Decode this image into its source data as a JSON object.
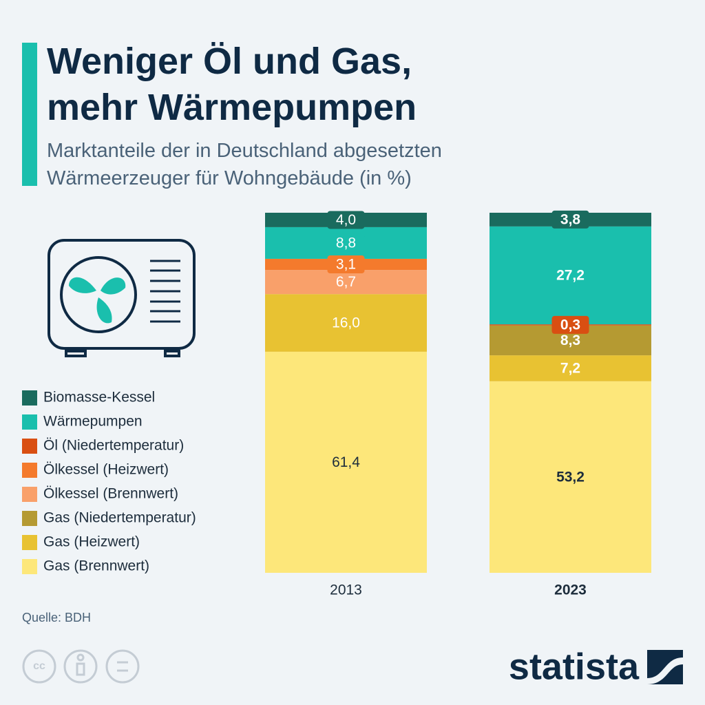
{
  "chart_data": {
    "type": "stacked_bar",
    "title": [
      "Weniger Öl und Gas,",
      "mehr Wärmepumpen"
    ],
    "subtitle": [
      "Marktanteile der in Deutschland abgesetzten",
      "Wärmeerzeuger für Wohngebäude (in %)"
    ],
    "categories": [
      "2013",
      "2023"
    ],
    "ylim": [
      0,
      100
    ],
    "series": [
      {
        "name": "Biomasse-Kessel",
        "color": "#1a6b5e",
        "values": [
          4.0,
          3.8
        ],
        "value_labels": [
          "4,0",
          "3,8"
        ]
      },
      {
        "name": "Wärmepumpen",
        "color": "#1abfad",
        "values": [
          8.8,
          27.2
        ],
        "value_labels": [
          "8,8",
          "27,2"
        ]
      },
      {
        "name": "Öl (Niedertemperatur)",
        "color": "#d94f12",
        "values": [
          null,
          0.3
        ],
        "value_labels": [
          null,
          "0,3"
        ]
      },
      {
        "name": "Ölkessel (Heizwert)",
        "color": "#f47a2c",
        "values": [
          3.1,
          null
        ],
        "value_labels": [
          "3,1",
          null
        ]
      },
      {
        "name": "Ölkessel (Brennwert)",
        "color": "#f9a06a",
        "values": [
          6.7,
          null
        ],
        "value_labels": [
          "6,7",
          null
        ]
      },
      {
        "name": "Gas (Niedertemperatur)",
        "color": "#b59a32",
        "values": [
          null,
          8.3
        ],
        "value_labels": [
          null,
          "8,3"
        ]
      },
      {
        "name": "Gas (Heizwert)",
        "color": "#e8c232",
        "values": [
          16.0,
          7.2
        ],
        "value_labels": [
          "16,0",
          "7,2"
        ]
      },
      {
        "name": "Gas (Brennwert)",
        "color": "#fde77a",
        "values": [
          61.4,
          53.2
        ],
        "value_labels": [
          "61,4",
          "53,2"
        ]
      }
    ]
  },
  "source": "Quelle: BDH",
  "brand": "statista"
}
